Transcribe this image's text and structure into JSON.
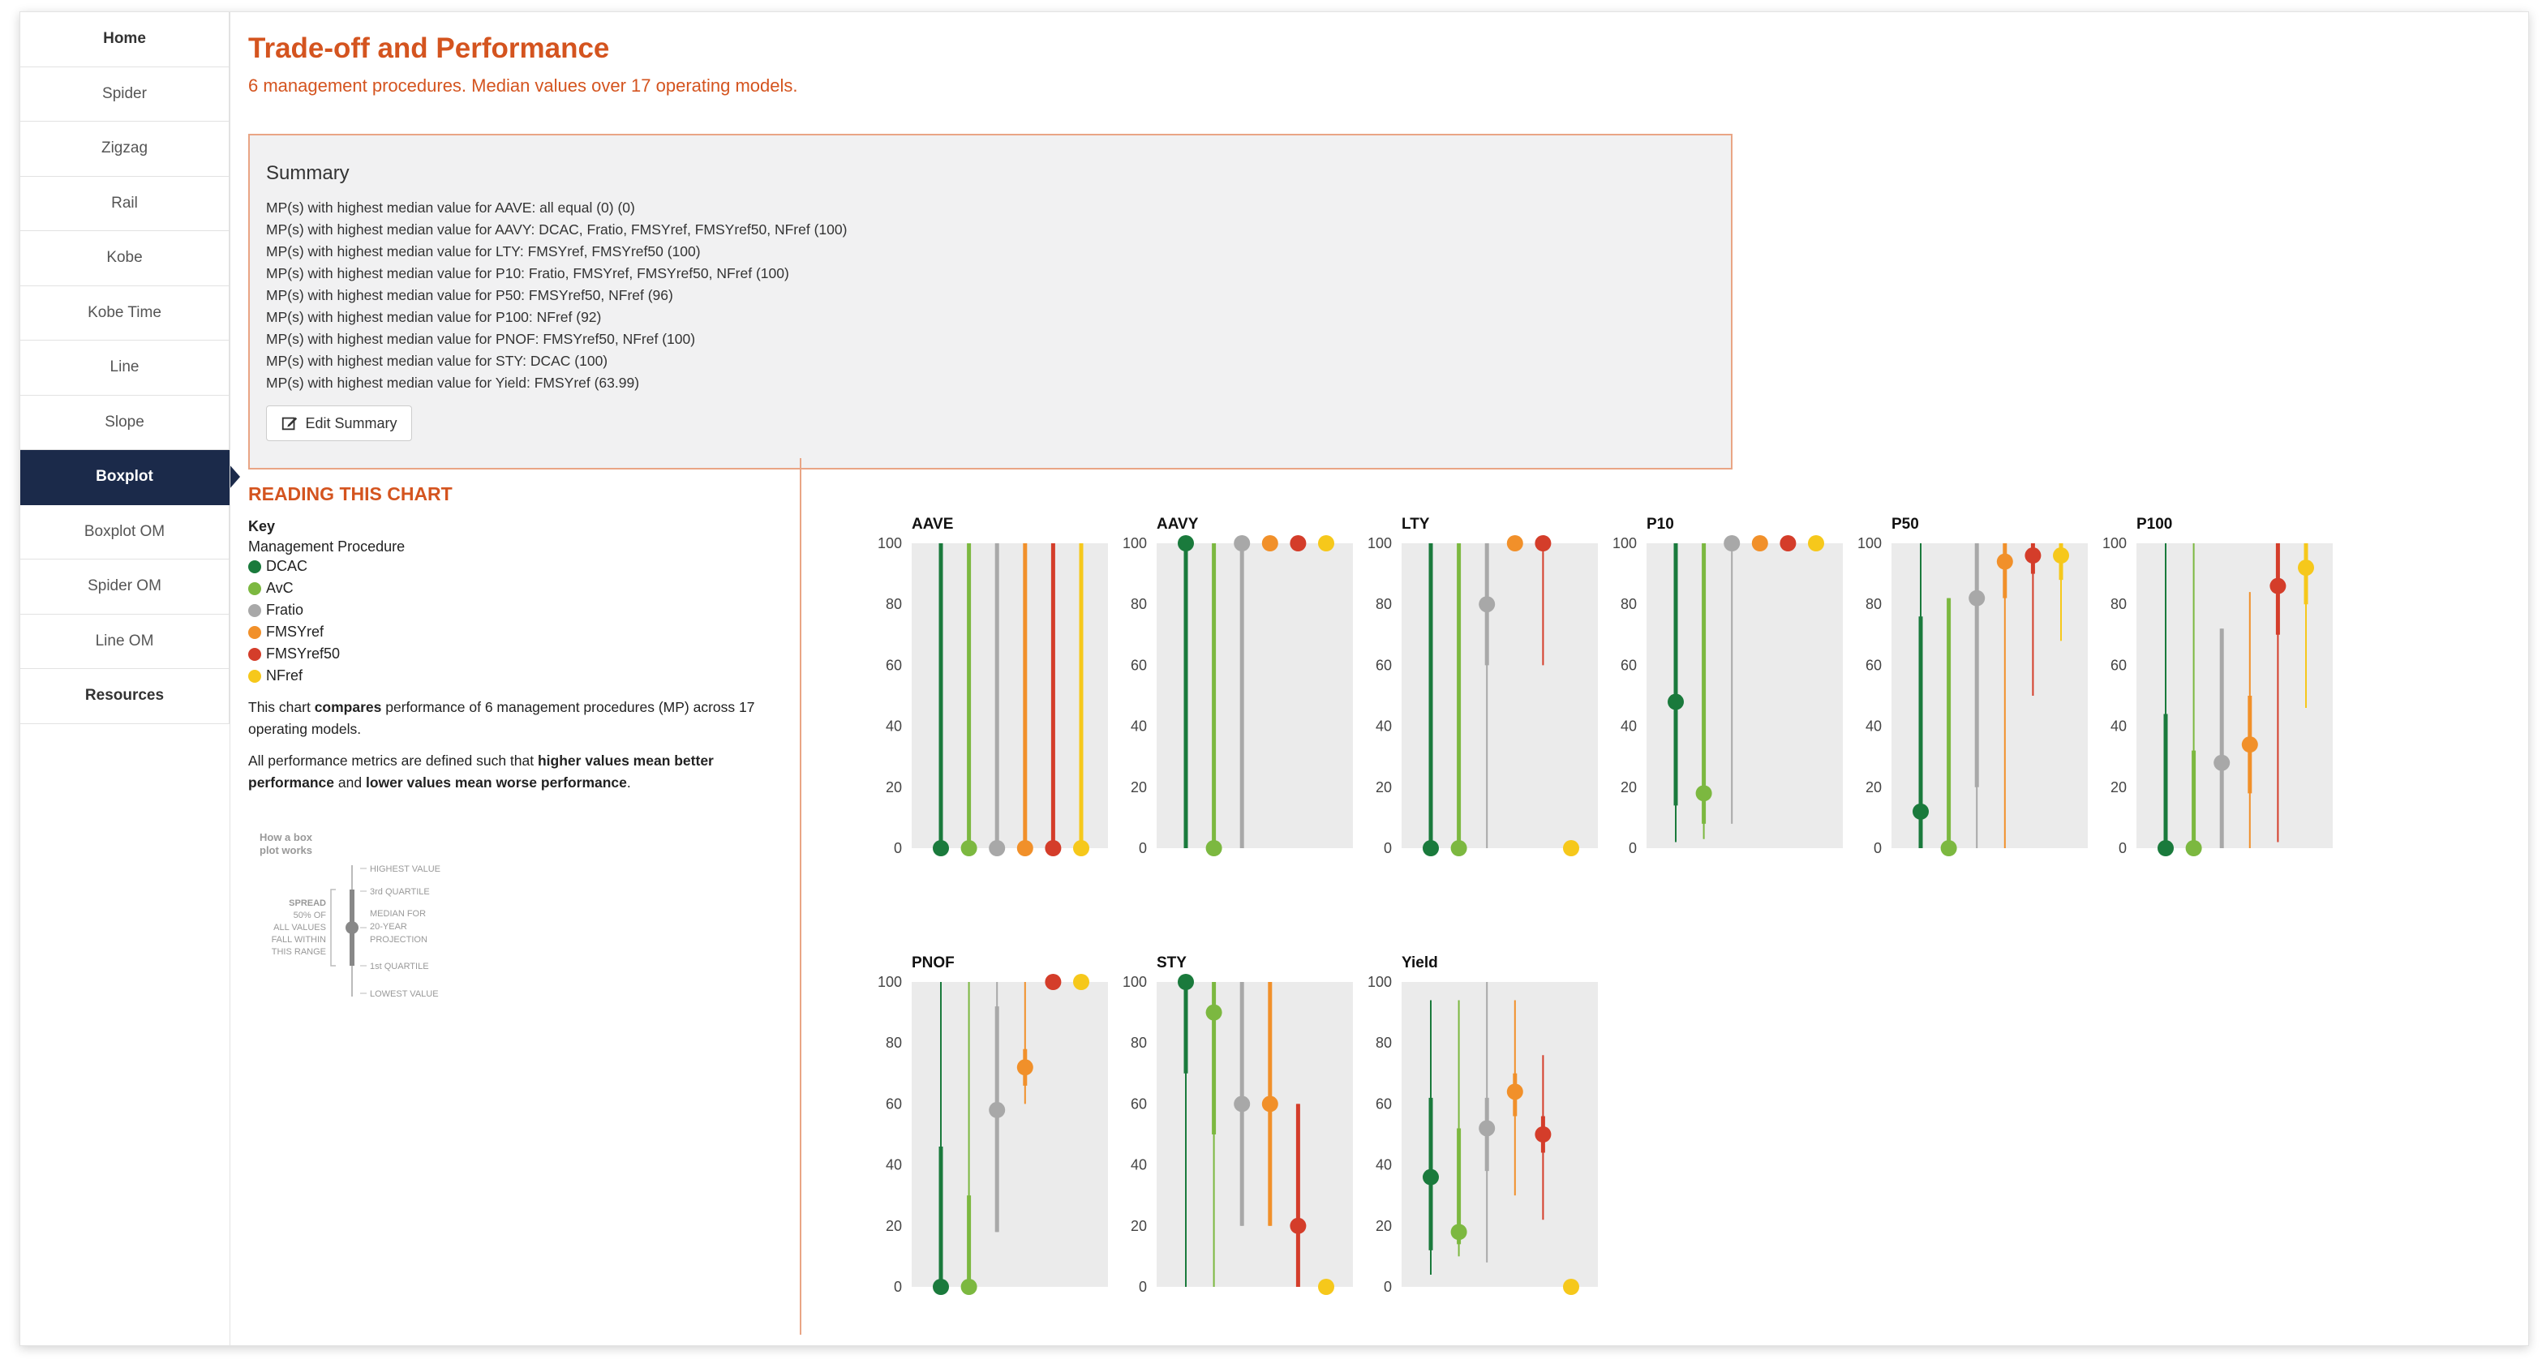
{
  "sidebar": {
    "items": [
      {
        "label": "Home",
        "bold": true
      },
      {
        "label": "Spider"
      },
      {
        "label": "Zigzag"
      },
      {
        "label": "Rail"
      },
      {
        "label": "Kobe"
      },
      {
        "label": "Kobe Time"
      },
      {
        "label": "Line"
      },
      {
        "label": "Slope"
      },
      {
        "label": "Boxplot",
        "active": true
      },
      {
        "label": "Boxplot OM"
      },
      {
        "label": "Spider OM"
      },
      {
        "label": "Line OM"
      },
      {
        "label": "Resources",
        "bold": true
      }
    ]
  },
  "header": {
    "title": "Trade-off and Performance",
    "subtitle": "6 management procedures. Median values over 17 operating models."
  },
  "summary": {
    "title": "Summary",
    "lines": [
      "MP(s) with highest median value for AAVE: all equal (0) (0)",
      "MP(s) with highest median value for AAVY: DCAC, Fratio, FMSYref, FMSYref50, NFref (100)",
      "MP(s) with highest median value for LTY: FMSYref, FMSYref50 (100)",
      "MP(s) with highest median value for P10: Fratio, FMSYref, FMSYref50, NFref (100)",
      "MP(s) with highest median value for P50: FMSYref50, NFref (96)",
      "MP(s) with highest median value for P100: NFref (92)",
      "MP(s) with highest median value for PNOF: FMSYref50, NFref (100)",
      "MP(s) with highest median value for STY: DCAC (100)",
      "MP(s) with highest median value for Yield: FMSYref (63.99)"
    ],
    "edit_label": "Edit Summary"
  },
  "reading": {
    "title": "READING THIS CHART",
    "key_heading": "Key",
    "key_sub": "Management Procedure",
    "para1_a": "This chart ",
    "para1_b": "compares",
    "para1_c": " performance of 6 management procedures (MP) across 17 operating models.",
    "para2_a": "All performance metrics are defined such that ",
    "para2_b": "higher values mean better performance",
    "para2_c": " and ",
    "para2_d": "lower values mean worse performance",
    "para2_e": ".",
    "howto": {
      "title_line1": "How a box",
      "title_line2": "plot works",
      "spread": [
        "SPREAD",
        "50% OF",
        "ALL VALUES",
        "FALL WITHIN",
        "THIS RANGE"
      ],
      "highest": "HIGHEST VALUE",
      "q3": "3rd QUARTILE",
      "median": [
        "MEDIAN FOR",
        "20-YEAR",
        "PROJECTION"
      ],
      "q1": "1st QUARTILE",
      "lowest": "LOWEST VALUE"
    }
  },
  "legend": [
    {
      "name": "DCAC",
      "color": "#1a7a3c"
    },
    {
      "name": "AvC",
      "color": "#7cb840"
    },
    {
      "name": "Fratio",
      "color": "#a8a8a8"
    },
    {
      "name": "FMSYref",
      "color": "#f1902a"
    },
    {
      "name": "FMSYref50",
      "color": "#d43d2a"
    },
    {
      "name": "NFref",
      "color": "#f6c81b"
    }
  ],
  "chart_data": {
    "type": "boxplot",
    "ylim": [
      0,
      100
    ],
    "yticks": [
      0,
      20,
      40,
      60,
      80,
      100
    ],
    "series_order": [
      "DCAC",
      "AvC",
      "Fratio",
      "FMSYref",
      "FMSYref50",
      "NFref"
    ],
    "panels": [
      {
        "title": "AAVE",
        "boxes": [
          {
            "min": 0,
            "q1": 0,
            "med": 0,
            "q3": 100,
            "max": 100
          },
          {
            "min": 0,
            "q1": 0,
            "med": 0,
            "q3": 100,
            "max": 100
          },
          {
            "min": 0,
            "q1": 0,
            "med": 0,
            "q3": 100,
            "max": 100
          },
          {
            "min": 0,
            "q1": 0,
            "med": 0,
            "q3": 100,
            "max": 100
          },
          {
            "min": 0,
            "q1": 0,
            "med": 0,
            "q3": 100,
            "max": 100
          },
          {
            "min": 0,
            "q1": 0,
            "med": 0,
            "q3": 100,
            "max": 100
          }
        ]
      },
      {
        "title": "AAVY",
        "boxes": [
          {
            "min": 0,
            "q1": 0,
            "med": 100,
            "q3": 100,
            "max": 100
          },
          {
            "min": 0,
            "q1": 0,
            "med": 0,
            "q3": 100,
            "max": 100
          },
          {
            "min": 0,
            "q1": 0,
            "med": 100,
            "q3": 100,
            "max": 100
          },
          {
            "min": 100,
            "q1": 100,
            "med": 100,
            "q3": 100,
            "max": 100
          },
          {
            "min": 100,
            "q1": 100,
            "med": 100,
            "q3": 100,
            "max": 100
          },
          {
            "min": 100,
            "q1": 100,
            "med": 100,
            "q3": 100,
            "max": 100
          }
        ]
      },
      {
        "title": "LTY",
        "boxes": [
          {
            "min": 0,
            "q1": 0,
            "med": 0,
            "q3": 100,
            "max": 100
          },
          {
            "min": 0,
            "q1": 0,
            "med": 0,
            "q3": 100,
            "max": 100
          },
          {
            "min": 0,
            "q1": 60,
            "med": 80,
            "q3": 100,
            "max": 100
          },
          {
            "min": 100,
            "q1": 100,
            "med": 100,
            "q3": 100,
            "max": 100
          },
          {
            "min": 60,
            "q1": 100,
            "med": 100,
            "q3": 100,
            "max": 100
          },
          {
            "min": 0,
            "q1": 0,
            "med": 0,
            "q3": 0,
            "max": 0
          }
        ]
      },
      {
        "title": "P10",
        "boxes": [
          {
            "min": 2,
            "q1": 14,
            "med": 48,
            "q3": 100,
            "max": 100
          },
          {
            "min": 3,
            "q1": 8,
            "med": 18,
            "q3": 100,
            "max": 100
          },
          {
            "min": 8,
            "q1": 100,
            "med": 100,
            "q3": 100,
            "max": 100
          },
          {
            "min": 100,
            "q1": 100,
            "med": 100,
            "q3": 100,
            "max": 100
          },
          {
            "min": 100,
            "q1": 100,
            "med": 100,
            "q3": 100,
            "max": 100
          },
          {
            "min": 100,
            "q1": 100,
            "med": 100,
            "q3": 100,
            "max": 100
          }
        ]
      },
      {
        "title": "P50",
        "boxes": [
          {
            "min": 0,
            "q1": 0,
            "med": 12,
            "q3": 76,
            "max": 100
          },
          {
            "min": 0,
            "q1": 0,
            "med": 0,
            "q3": 82,
            "max": 82
          },
          {
            "min": 0,
            "q1": 20,
            "med": 82,
            "q3": 100,
            "max": 100
          },
          {
            "min": 0,
            "q1": 82,
            "med": 94,
            "q3": 100,
            "max": 100
          },
          {
            "min": 50,
            "q1": 90,
            "med": 96,
            "q3": 100,
            "max": 100
          },
          {
            "min": 68,
            "q1": 88,
            "med": 96,
            "q3": 100,
            "max": 100
          }
        ]
      },
      {
        "title": "P100",
        "boxes": [
          {
            "min": 0,
            "q1": 0,
            "med": 0,
            "q3": 44,
            "max": 100
          },
          {
            "min": 0,
            "q1": 0,
            "med": 0,
            "q3": 32,
            "max": 100
          },
          {
            "min": 0,
            "q1": 0,
            "med": 28,
            "q3": 72,
            "max": 72
          },
          {
            "min": 0,
            "q1": 18,
            "med": 34,
            "q3": 50,
            "max": 84
          },
          {
            "min": 2,
            "q1": 70,
            "med": 86,
            "q3": 100,
            "max": 100
          },
          {
            "min": 46,
            "q1": 80,
            "med": 92,
            "q3": 100,
            "max": 100
          }
        ]
      },
      {
        "title": "PNOF",
        "boxes": [
          {
            "min": 0,
            "q1": 0,
            "med": 0,
            "q3": 46,
            "max": 100
          },
          {
            "min": 0,
            "q1": 0,
            "med": 0,
            "q3": 30,
            "max": 100
          },
          {
            "min": 18,
            "q1": 18,
            "med": 58,
            "q3": 92,
            "max": 100
          },
          {
            "min": 60,
            "q1": 66,
            "med": 72,
            "q3": 78,
            "max": 100
          },
          {
            "min": 100,
            "q1": 100,
            "med": 100,
            "q3": 100,
            "max": 100
          },
          {
            "min": 100,
            "q1": 100,
            "med": 100,
            "q3": 100,
            "max": 100
          }
        ]
      },
      {
        "title": "STY",
        "boxes": [
          {
            "min": 0,
            "q1": 70,
            "med": 100,
            "q3": 100,
            "max": 100
          },
          {
            "min": 0,
            "q1": 50,
            "med": 90,
            "q3": 100,
            "max": 100
          },
          {
            "min": 20,
            "q1": 20,
            "med": 60,
            "q3": 100,
            "max": 100
          },
          {
            "min": 20,
            "q1": 20,
            "med": 60,
            "q3": 100,
            "max": 100
          },
          {
            "min": 0,
            "q1": 0,
            "med": 20,
            "q3": 60,
            "max": 60
          },
          {
            "min": 0,
            "q1": 0,
            "med": 0,
            "q3": 0,
            "max": 0
          }
        ]
      },
      {
        "title": "Yield",
        "boxes": [
          {
            "min": 4,
            "q1": 12,
            "med": 36,
            "q3": 62,
            "max": 94
          },
          {
            "min": 10,
            "q1": 14,
            "med": 18,
            "q3": 52,
            "max": 94
          },
          {
            "min": 8,
            "q1": 38,
            "med": 52,
            "q3": 62,
            "max": 100
          },
          {
            "min": 30,
            "q1": 56,
            "med": 64,
            "q3": 70,
            "max": 94
          },
          {
            "min": 22,
            "q1": 44,
            "med": 50,
            "q3": 56,
            "max": 76
          },
          {
            "min": 0,
            "q1": 0,
            "med": 0,
            "q3": 0,
            "max": 0
          }
        ]
      }
    ]
  }
}
